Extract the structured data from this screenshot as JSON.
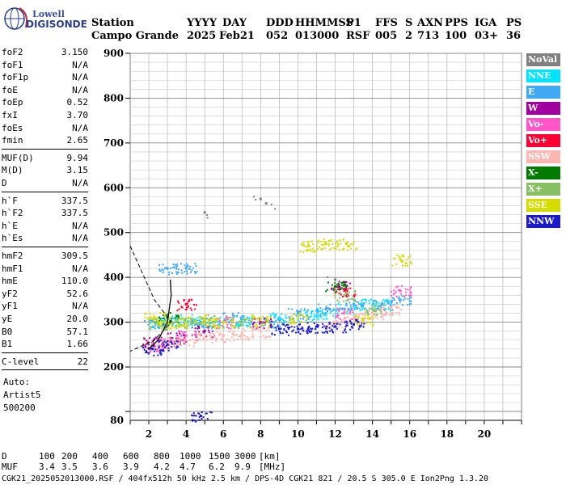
{
  "logo": {
    "line1": "Lowell",
    "line2": "DIGISONDE"
  },
  "header": {
    "labels": [
      "Station",
      "YYYY",
      "DAY",
      "DDD",
      "HHMMSS",
      "P1",
      "FFS",
      "S",
      "AXN",
      "PPS",
      "IGA",
      "PS"
    ],
    "values": [
      "Campo Grande",
      "2025",
      "Feb21",
      "052",
      "013000",
      "RSF",
      "005",
      "2",
      "713",
      "100",
      "03+",
      "36"
    ]
  },
  "params": [
    {
      "label": "foF2",
      "value": "3.150"
    },
    {
      "label": "foF1",
      "value": "N/A"
    },
    {
      "label": "foF1p",
      "value": "N/A"
    },
    {
      "label": "foE",
      "value": "N/A"
    },
    {
      "label": "foEp",
      "value": "0.52"
    },
    {
      "label": "fxI",
      "value": "3.70"
    },
    {
      "label": "foEs",
      "value": "N/A"
    },
    {
      "label": "fmin",
      "value": "2.65"
    },
    {
      "label": "MUF(D)",
      "value": "9.94"
    },
    {
      "label": "M(D)",
      "value": "3.15"
    },
    {
      "label": "D",
      "value": "N/A"
    },
    {
      "label": "h`F",
      "value": "337.5"
    },
    {
      "label": "h`F2",
      "value": "337.5"
    },
    {
      "label": "h`E",
      "value": "N/A"
    },
    {
      "label": "h`Es",
      "value": "N/A"
    },
    {
      "label": "hmF2",
      "value": "309.5"
    },
    {
      "label": "hmF1",
      "value": "N/A"
    },
    {
      "label": "hmE",
      "value": "110.0"
    },
    {
      "label": "yF2",
      "value": "52.6"
    },
    {
      "label": "yF1",
      "value": "N/A"
    },
    {
      "label": "yE",
      "value": "20.0"
    },
    {
      "label": "B0",
      "value": "57.1"
    },
    {
      "label": "B1",
      "value": "1.66"
    },
    {
      "label": "C-level",
      "value": "22"
    }
  ],
  "auto": {
    "line1": "Auto:",
    "line2": "Artist5",
    "line3": "500200"
  },
  "legend": [
    {
      "label": "NoVal",
      "bg": "#808080",
      "fg": "#ffffff"
    },
    {
      "label": "NNE",
      "bg": "#00e5ff",
      "fg": "#ffffff"
    },
    {
      "label": "E",
      "bg": "#3fa9f5",
      "fg": "#ffffff"
    },
    {
      "label": "W",
      "bg": "#a0009e",
      "fg": "#ffffff"
    },
    {
      "label": "Vo-",
      "bg": "#ff55c8",
      "fg": "#ffffff"
    },
    {
      "label": "Vo+",
      "bg": "#ff0033",
      "fg": "#ffffff"
    },
    {
      "label": "SSW",
      "bg": "#ffb6b0",
      "fg": "#ffffff"
    },
    {
      "label": "X-",
      "bg": "#007a00",
      "fg": "#ffffff"
    },
    {
      "label": "X+",
      "bg": "#86c062",
      "fg": "#ffffff"
    },
    {
      "label": "SSE",
      "bg": "#d7dc00",
      "fg": "#ffffff"
    },
    {
      "label": "NNW",
      "bg": "#1a1acc",
      "fg": "#ffffff"
    }
  ],
  "footer": {
    "row1_label": "D",
    "row1_values": [
      "100",
      "200",
      "400",
      "600",
      "800",
      "1000",
      "1500",
      "3000"
    ],
    "row1_unit": "[km]",
    "row2_label": "MUF",
    "row2_values": [
      "3.4",
      "3.5",
      "3.6",
      "3.9",
      "4.2",
      "4.7",
      "6.2",
      "9.9"
    ],
    "row2_unit": "[MHz]",
    "file_line": "CGK21_2025052013000.RSF / 404fx512h 50 kHz 2.5 km / DPS-4D CGK21 821 / 20.5 S 305.0 E Ion2Png 1.3.20"
  },
  "chart_data": {
    "type": "scatter",
    "x_ticks": [
      2,
      4,
      6,
      8,
      10,
      12,
      14,
      16,
      18,
      20
    ],
    "y_ticks": [
      80,
      200,
      300,
      400,
      500,
      600,
      700,
      800,
      900
    ],
    "xlim": [
      1,
      22
    ],
    "ylim": [
      80,
      900
    ],
    "grid": true,
    "legend_placement": "right",
    "series": [
      {
        "name": "NNE",
        "color": "#00e5ff",
        "x": [
          2.5,
          3.5,
          4.5,
          5.5,
          7.0,
          9.0,
          10.5,
          11.5,
          12.5,
          13.5,
          14.5
        ],
        "y": [
          300,
          305,
          305,
          300,
          305,
          310,
          315,
          320,
          330,
          340,
          340
        ]
      },
      {
        "name": "E",
        "color": "#3fa9f5",
        "x": [
          2.3,
          3.0,
          4.0,
          4.8,
          6.5,
          8.5,
          10.0,
          11.5,
          13.0,
          14.5,
          15.5
        ],
        "y": [
          300,
          420,
          420,
          300,
          310,
          300,
          320,
          330,
          340,
          340,
          350
        ]
      },
      {
        "name": "W",
        "color": "#a0009e",
        "x": [
          2.2,
          3.5,
          5.0,
          8.0,
          12.2
        ],
        "y": [
          255,
          265,
          280,
          300,
          380
        ]
      },
      {
        "name": "Vo-",
        "color": "#ff55c8",
        "x": [
          2.2,
          3.0,
          4.0,
          6.0,
          12.5,
          15.5
        ],
        "y": [
          245,
          255,
          270,
          300,
          320,
          370
        ]
      },
      {
        "name": "Vo+",
        "color": "#ff0033",
        "x": [
          4.0,
          12.5
        ],
        "y": [
          340,
          370
        ]
      },
      {
        "name": "SSW",
        "color": "#ffb6b0",
        "x": [
          2.2,
          3.0,
          4.0,
          5.0,
          6.0,
          7.0,
          8.0,
          12.0,
          13.0,
          14.0,
          15.0
        ],
        "y": [
          250,
          255,
          260,
          265,
          270,
          275,
          280,
          300,
          310,
          320,
          330
        ]
      },
      {
        "name": "X-",
        "color": "#007a00",
        "x": [
          3.0,
          12.0
        ],
        "y": [
          310,
          380
        ]
      },
      {
        "name": "X+",
        "color": "#86c062",
        "x": [
          2.5,
          3.5,
          5.0,
          7.0,
          12.5,
          14.0
        ],
        "y": [
          295,
          300,
          305,
          300,
          360,
          330
        ]
      },
      {
        "name": "SSE",
        "color": "#d7dc00",
        "x": [
          2.3,
          3.0,
          4.0,
          5.0,
          6.0,
          8.0,
          10.0,
          10.6,
          11.5,
          12.6,
          13.5,
          15.5
        ],
        "y": [
          310,
          300,
          300,
          305,
          300,
          305,
          310,
          470,
          475,
          475,
          305,
          440
        ]
      },
      {
        "name": "NNW",
        "color": "#1a1acc",
        "x": [
          2.2,
          3.0,
          9.0,
          10.0,
          11.0,
          12.0,
          13.0,
          4.8
        ],
        "y": [
          240,
          250,
          285,
          285,
          290,
          290,
          295,
          90
        ]
      },
      {
        "name": "NoVal",
        "color": "#808080",
        "x": [
          5.0,
          8.0,
          8.3,
          12.0
        ],
        "y": [
          545,
          575,
          565,
          395
        ]
      }
    ],
    "profile_line": {
      "x": [
        2.0,
        2.5,
        3.0,
        3.2,
        3.15
      ],
      "y": [
        240,
        260,
        300,
        360,
        395
      ]
    },
    "dashed_line": {
      "x": [
        1.0,
        2.3,
        3.2,
        2.3,
        1.0
      ],
      "y": [
        470,
        350,
        300,
        260,
        235
      ]
    }
  }
}
